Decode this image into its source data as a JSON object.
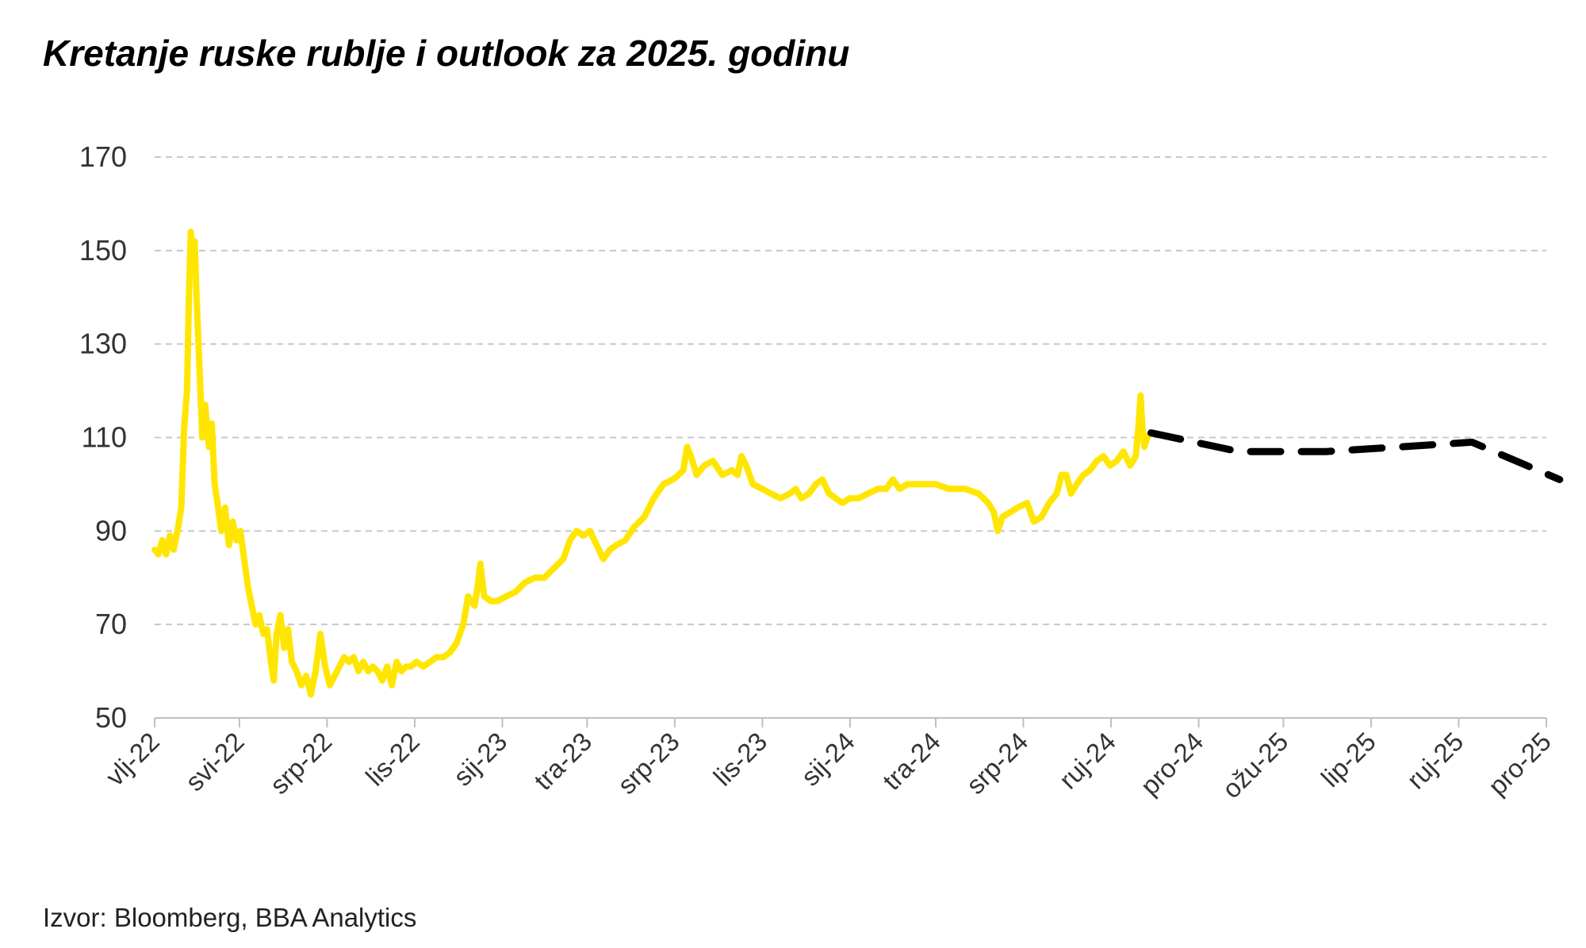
{
  "chart_data": {
    "type": "line",
    "title": "Kretanje ruske rublje i outlook za 2025. godinu",
    "source": "Izvor: Bloomberg, BBA Analytics",
    "xlabel": "",
    "ylabel": "",
    "ylim": [
      50,
      170
    ],
    "yticks": [
      50,
      70,
      90,
      110,
      130,
      150,
      170
    ],
    "grid": true,
    "legend": "none",
    "x_axis": {
      "start": "2022-01-01",
      "end": "2025-12-31",
      "ticks": [
        {
          "label": "vlj-22",
          "date": "2022-02-01"
        },
        {
          "label": "svi-22",
          "date": "2022-05-01"
        },
        {
          "label": "srp-22",
          "date": "2022-08-01"
        },
        {
          "label": "lis-22",
          "date": "2022-11-01"
        },
        {
          "label": "sij-23",
          "date": "2023-02-01"
        },
        {
          "label": "tra-23",
          "date": "2023-05-01"
        },
        {
          "label": "srp-23",
          "date": "2023-08-01"
        },
        {
          "label": "lis-23",
          "date": "2023-11-01"
        },
        {
          "label": "sij-24",
          "date": "2024-02-01"
        },
        {
          "label": "tra-24",
          "date": "2024-05-01"
        },
        {
          "label": "srp-24",
          "date": "2024-08-01"
        },
        {
          "label": "ruj-24",
          "date": "2024-11-01"
        },
        {
          "label": "pro-24",
          "date": "2025-02-01"
        },
        {
          "label": "ožu-25",
          "date": "2025-05-01"
        },
        {
          "label": "lip-25",
          "date": "2025-08-01"
        },
        {
          "label": "ruj-25",
          "date": "2025-11-01"
        },
        {
          "label": "pro-25",
          "date": "2026-02-01"
        }
      ]
    },
    "series": [
      {
        "style": "solid",
        "color": "#FFE600",
        "points": [
          [
            "2022-02-01",
            86
          ],
          [
            "2022-02-05",
            85
          ],
          [
            "2022-02-09",
            88
          ],
          [
            "2022-02-13",
            85
          ],
          [
            "2022-02-17",
            89
          ],
          [
            "2022-02-21",
            86
          ],
          [
            "2022-02-25",
            90
          ],
          [
            "2022-03-01",
            95
          ],
          [
            "2022-03-04",
            112
          ],
          [
            "2022-03-07",
            120
          ],
          [
            "2022-03-09",
            140
          ],
          [
            "2022-03-11",
            154
          ],
          [
            "2022-03-13",
            148
          ],
          [
            "2022-03-15",
            152
          ],
          [
            "2022-03-17",
            140
          ],
          [
            "2022-03-20",
            125
          ],
          [
            "2022-03-23",
            110
          ],
          [
            "2022-03-26",
            117
          ],
          [
            "2022-03-30",
            108
          ],
          [
            "2022-04-02",
            113
          ],
          [
            "2022-04-05",
            100
          ],
          [
            "2022-04-08",
            96
          ],
          [
            "2022-04-12",
            90
          ],
          [
            "2022-04-16",
            95
          ],
          [
            "2022-04-20",
            87
          ],
          [
            "2022-04-24",
            92
          ],
          [
            "2022-04-28",
            88
          ],
          [
            "2022-05-02",
            90
          ],
          [
            "2022-05-06",
            84
          ],
          [
            "2022-05-10",
            78
          ],
          [
            "2022-05-14",
            74
          ],
          [
            "2022-05-18",
            70
          ],
          [
            "2022-05-22",
            72
          ],
          [
            "2022-05-26",
            68
          ],
          [
            "2022-05-30",
            69
          ],
          [
            "2022-06-03",
            62
          ],
          [
            "2022-06-06",
            58
          ],
          [
            "2022-06-09",
            68
          ],
          [
            "2022-06-13",
            72
          ],
          [
            "2022-06-17",
            65
          ],
          [
            "2022-06-21",
            69
          ],
          [
            "2022-06-25",
            62
          ],
          [
            "2022-06-30",
            60
          ],
          [
            "2022-07-05",
            57
          ],
          [
            "2022-07-10",
            59
          ],
          [
            "2022-07-15",
            55
          ],
          [
            "2022-07-20",
            60
          ],
          [
            "2022-07-25",
            68
          ],
          [
            "2022-07-30",
            61
          ],
          [
            "2022-08-04",
            57
          ],
          [
            "2022-08-09",
            59
          ],
          [
            "2022-08-14",
            61
          ],
          [
            "2022-08-19",
            63
          ],
          [
            "2022-08-24",
            62
          ],
          [
            "2022-08-29",
            63
          ],
          [
            "2022-09-03",
            60
          ],
          [
            "2022-09-08",
            62
          ],
          [
            "2022-09-13",
            60
          ],
          [
            "2022-09-18",
            61
          ],
          [
            "2022-09-23",
            60
          ],
          [
            "2022-09-28",
            58
          ],
          [
            "2022-10-03",
            61
          ],
          [
            "2022-10-08",
            57
          ],
          [
            "2022-10-13",
            62
          ],
          [
            "2022-10-18",
            60
          ],
          [
            "2022-10-23",
            61
          ],
          [
            "2022-10-28",
            61
          ],
          [
            "2022-11-03",
            62
          ],
          [
            "2022-11-10",
            61
          ],
          [
            "2022-11-17",
            62
          ],
          [
            "2022-11-24",
            63
          ],
          [
            "2022-12-01",
            63
          ],
          [
            "2022-12-08",
            64
          ],
          [
            "2022-12-15",
            66
          ],
          [
            "2022-12-22",
            70
          ],
          [
            "2022-12-27",
            76
          ],
          [
            "2023-01-03",
            74
          ],
          [
            "2023-01-06",
            78
          ],
          [
            "2023-01-09",
            83
          ],
          [
            "2023-01-13",
            76
          ],
          [
            "2023-01-20",
            75
          ],
          [
            "2023-01-27",
            75
          ],
          [
            "2023-02-05",
            76
          ],
          [
            "2023-02-15",
            77
          ],
          [
            "2023-02-25",
            79
          ],
          [
            "2023-03-07",
            80
          ],
          [
            "2023-03-17",
            80
          ],
          [
            "2023-03-27",
            82
          ],
          [
            "2023-04-06",
            84
          ],
          [
            "2023-04-13",
            88
          ],
          [
            "2023-04-20",
            90
          ],
          [
            "2023-04-27",
            89
          ],
          [
            "2023-05-04",
            90
          ],
          [
            "2023-05-11",
            87
          ],
          [
            "2023-05-18",
            84
          ],
          [
            "2023-05-25",
            86
          ],
          [
            "2023-06-01",
            87
          ],
          [
            "2023-06-10",
            88
          ],
          [
            "2023-06-20",
            91
          ],
          [
            "2023-06-30",
            93
          ],
          [
            "2023-07-10",
            97
          ],
          [
            "2023-07-20",
            100
          ],
          [
            "2023-07-30",
            101
          ],
          [
            "2023-08-05",
            102
          ],
          [
            "2023-08-10",
            103
          ],
          [
            "2023-08-14",
            108
          ],
          [
            "2023-08-18",
            106
          ],
          [
            "2023-08-24",
            102
          ],
          [
            "2023-09-01",
            104
          ],
          [
            "2023-09-10",
            105
          ],
          [
            "2023-09-20",
            102
          ],
          [
            "2023-09-30",
            103
          ],
          [
            "2023-10-06",
            102
          ],
          [
            "2023-10-10",
            106
          ],
          [
            "2023-10-15",
            104
          ],
          [
            "2023-10-22",
            100
          ],
          [
            "2023-11-01",
            99
          ],
          [
            "2023-11-10",
            98
          ],
          [
            "2023-11-20",
            97
          ],
          [
            "2023-11-30",
            98
          ],
          [
            "2023-12-06",
            99
          ],
          [
            "2023-12-12",
            97
          ],
          [
            "2023-12-20",
            98
          ],
          [
            "2023-12-27",
            100
          ],
          [
            "2024-01-03",
            101
          ],
          [
            "2024-01-10",
            98
          ],
          [
            "2024-01-17",
            97
          ],
          [
            "2024-01-24",
            96
          ],
          [
            "2024-02-01",
            97
          ],
          [
            "2024-02-10",
            97
          ],
          [
            "2024-02-20",
            98
          ],
          [
            "2024-03-01",
            99
          ],
          [
            "2024-03-10",
            99
          ],
          [
            "2024-03-17",
            101
          ],
          [
            "2024-03-24",
            99
          ],
          [
            "2024-04-01",
            100
          ],
          [
            "2024-04-15",
            100
          ],
          [
            "2024-05-01",
            100
          ],
          [
            "2024-05-15",
            99
          ],
          [
            "2024-06-01",
            99
          ],
          [
            "2024-06-15",
            98
          ],
          [
            "2024-06-25",
            96
          ],
          [
            "2024-07-01",
            94
          ],
          [
            "2024-07-05",
            90
          ],
          [
            "2024-07-10",
            93
          ],
          [
            "2024-07-18",
            94
          ],
          [
            "2024-07-26",
            95
          ],
          [
            "2024-08-05",
            96
          ],
          [
            "2024-08-12",
            92
          ],
          [
            "2024-08-20",
            93
          ],
          [
            "2024-08-28",
            96
          ],
          [
            "2024-09-05",
            98
          ],
          [
            "2024-09-10",
            102
          ],
          [
            "2024-09-15",
            102
          ],
          [
            "2024-09-20",
            98
          ],
          [
            "2024-09-26",
            100
          ],
          [
            "2024-10-03",
            102
          ],
          [
            "2024-10-10",
            103
          ],
          [
            "2024-10-17",
            105
          ],
          [
            "2024-10-24",
            106
          ],
          [
            "2024-10-31",
            104
          ],
          [
            "2024-11-07",
            105
          ],
          [
            "2024-11-14",
            107
          ],
          [
            "2024-11-21",
            104
          ],
          [
            "2024-11-27",
            106
          ],
          [
            "2024-11-30",
            113
          ],
          [
            "2024-12-02",
            119
          ],
          [
            "2024-12-04",
            112
          ],
          [
            "2024-12-06",
            108
          ],
          [
            "2024-12-09",
            110
          ],
          [
            "2024-12-13",
            111
          ]
        ]
      },
      {
        "style": "dashed",
        "color": "#000000",
        "points": [
          [
            "2024-12-13",
            111
          ],
          [
            "2025-03-15",
            107
          ],
          [
            "2025-06-15",
            107
          ],
          [
            "2025-09-01",
            108
          ],
          [
            "2025-11-15",
            109
          ],
          [
            "2026-02-15",
            101
          ]
        ]
      }
    ]
  }
}
